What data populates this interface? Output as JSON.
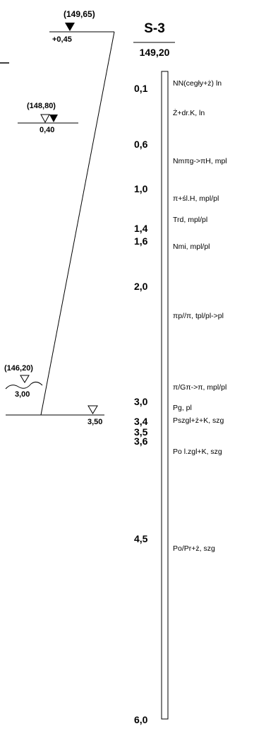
{
  "borehole": {
    "name": "S-3",
    "ordinate": "149,20"
  },
  "water_levels": [
    {
      "elevation": "(149,65)",
      "depth": "+0,45",
      "symbol": "filled"
    },
    {
      "elevation": "(148,80)",
      "depth": "0,40",
      "symbol": "filled-hollow"
    },
    {
      "elevation": "(146,20)",
      "depth": "3,00",
      "symbol": "hollow-wave"
    },
    {
      "elevation": "",
      "depth": "3,50",
      "symbol": "hollow"
    }
  ],
  "depths": [
    {
      "value": "0,1",
      "depth": 0.1
    },
    {
      "value": "0,6",
      "depth": 0.6
    },
    {
      "value": "1,0",
      "depth": 1.0
    },
    {
      "value": "1,4",
      "depth": 1.4
    },
    {
      "value": "1,6",
      "depth": 1.6
    },
    {
      "value": "2,0",
      "depth": 2.0
    },
    {
      "value": "3,0",
      "depth": 3.0
    },
    {
      "value": "3,4",
      "depth": 3.4
    },
    {
      "value": "3,5",
      "depth": 3.5
    },
    {
      "value": "3,6",
      "depth": 3.6
    },
    {
      "value": "4,5",
      "depth": 4.5
    },
    {
      "value": "6,0",
      "depth": 6.0
    }
  ],
  "layers": [
    {
      "label": "NN(cegły+ż) ln"
    },
    {
      "label": "Ż+dr.K, ln"
    },
    {
      "label": "Nmπg->πH, mpl"
    },
    {
      "label": "π+śl.H, mpl/pl"
    },
    {
      "label": "Trd, mpl/pl"
    },
    {
      "label": "Nmi, mpl/pl"
    },
    {
      "label": "πp//π, tpl/pl->pl"
    },
    {
      "label": "π/Gπ->π, mpl/pl"
    },
    {
      "label": "Pg, pl"
    },
    {
      "label": "Pszgl+ż+K, szg"
    },
    {
      "label": "Po l.zgl+K, szg"
    },
    {
      "label": "Po/Pr+ż, szg"
    }
  ]
}
